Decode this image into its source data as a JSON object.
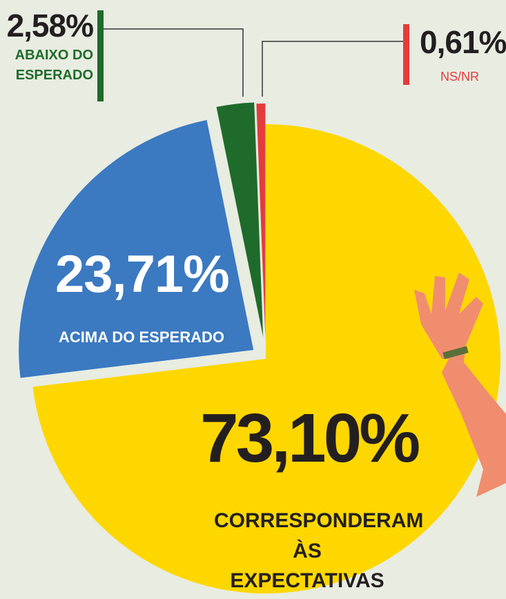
{
  "chart_data": {
    "type": "pie",
    "categories": [
      "CORRESPONDERAM ÀS EXPECTATIVAS",
      "ACIMA DO ESPERADO",
      "ABAIXO DO ESPERADO",
      "NS/NR"
    ],
    "values": [
      73.1,
      23.71,
      2.58,
      0.61
    ],
    "value_labels": [
      "73,10%",
      "23,71%",
      "2,58%",
      "0,61%"
    ],
    "colors": [
      "#fed700",
      "#3b79c1",
      "#1f6b2b",
      "#e43b3b"
    ]
  }
}
